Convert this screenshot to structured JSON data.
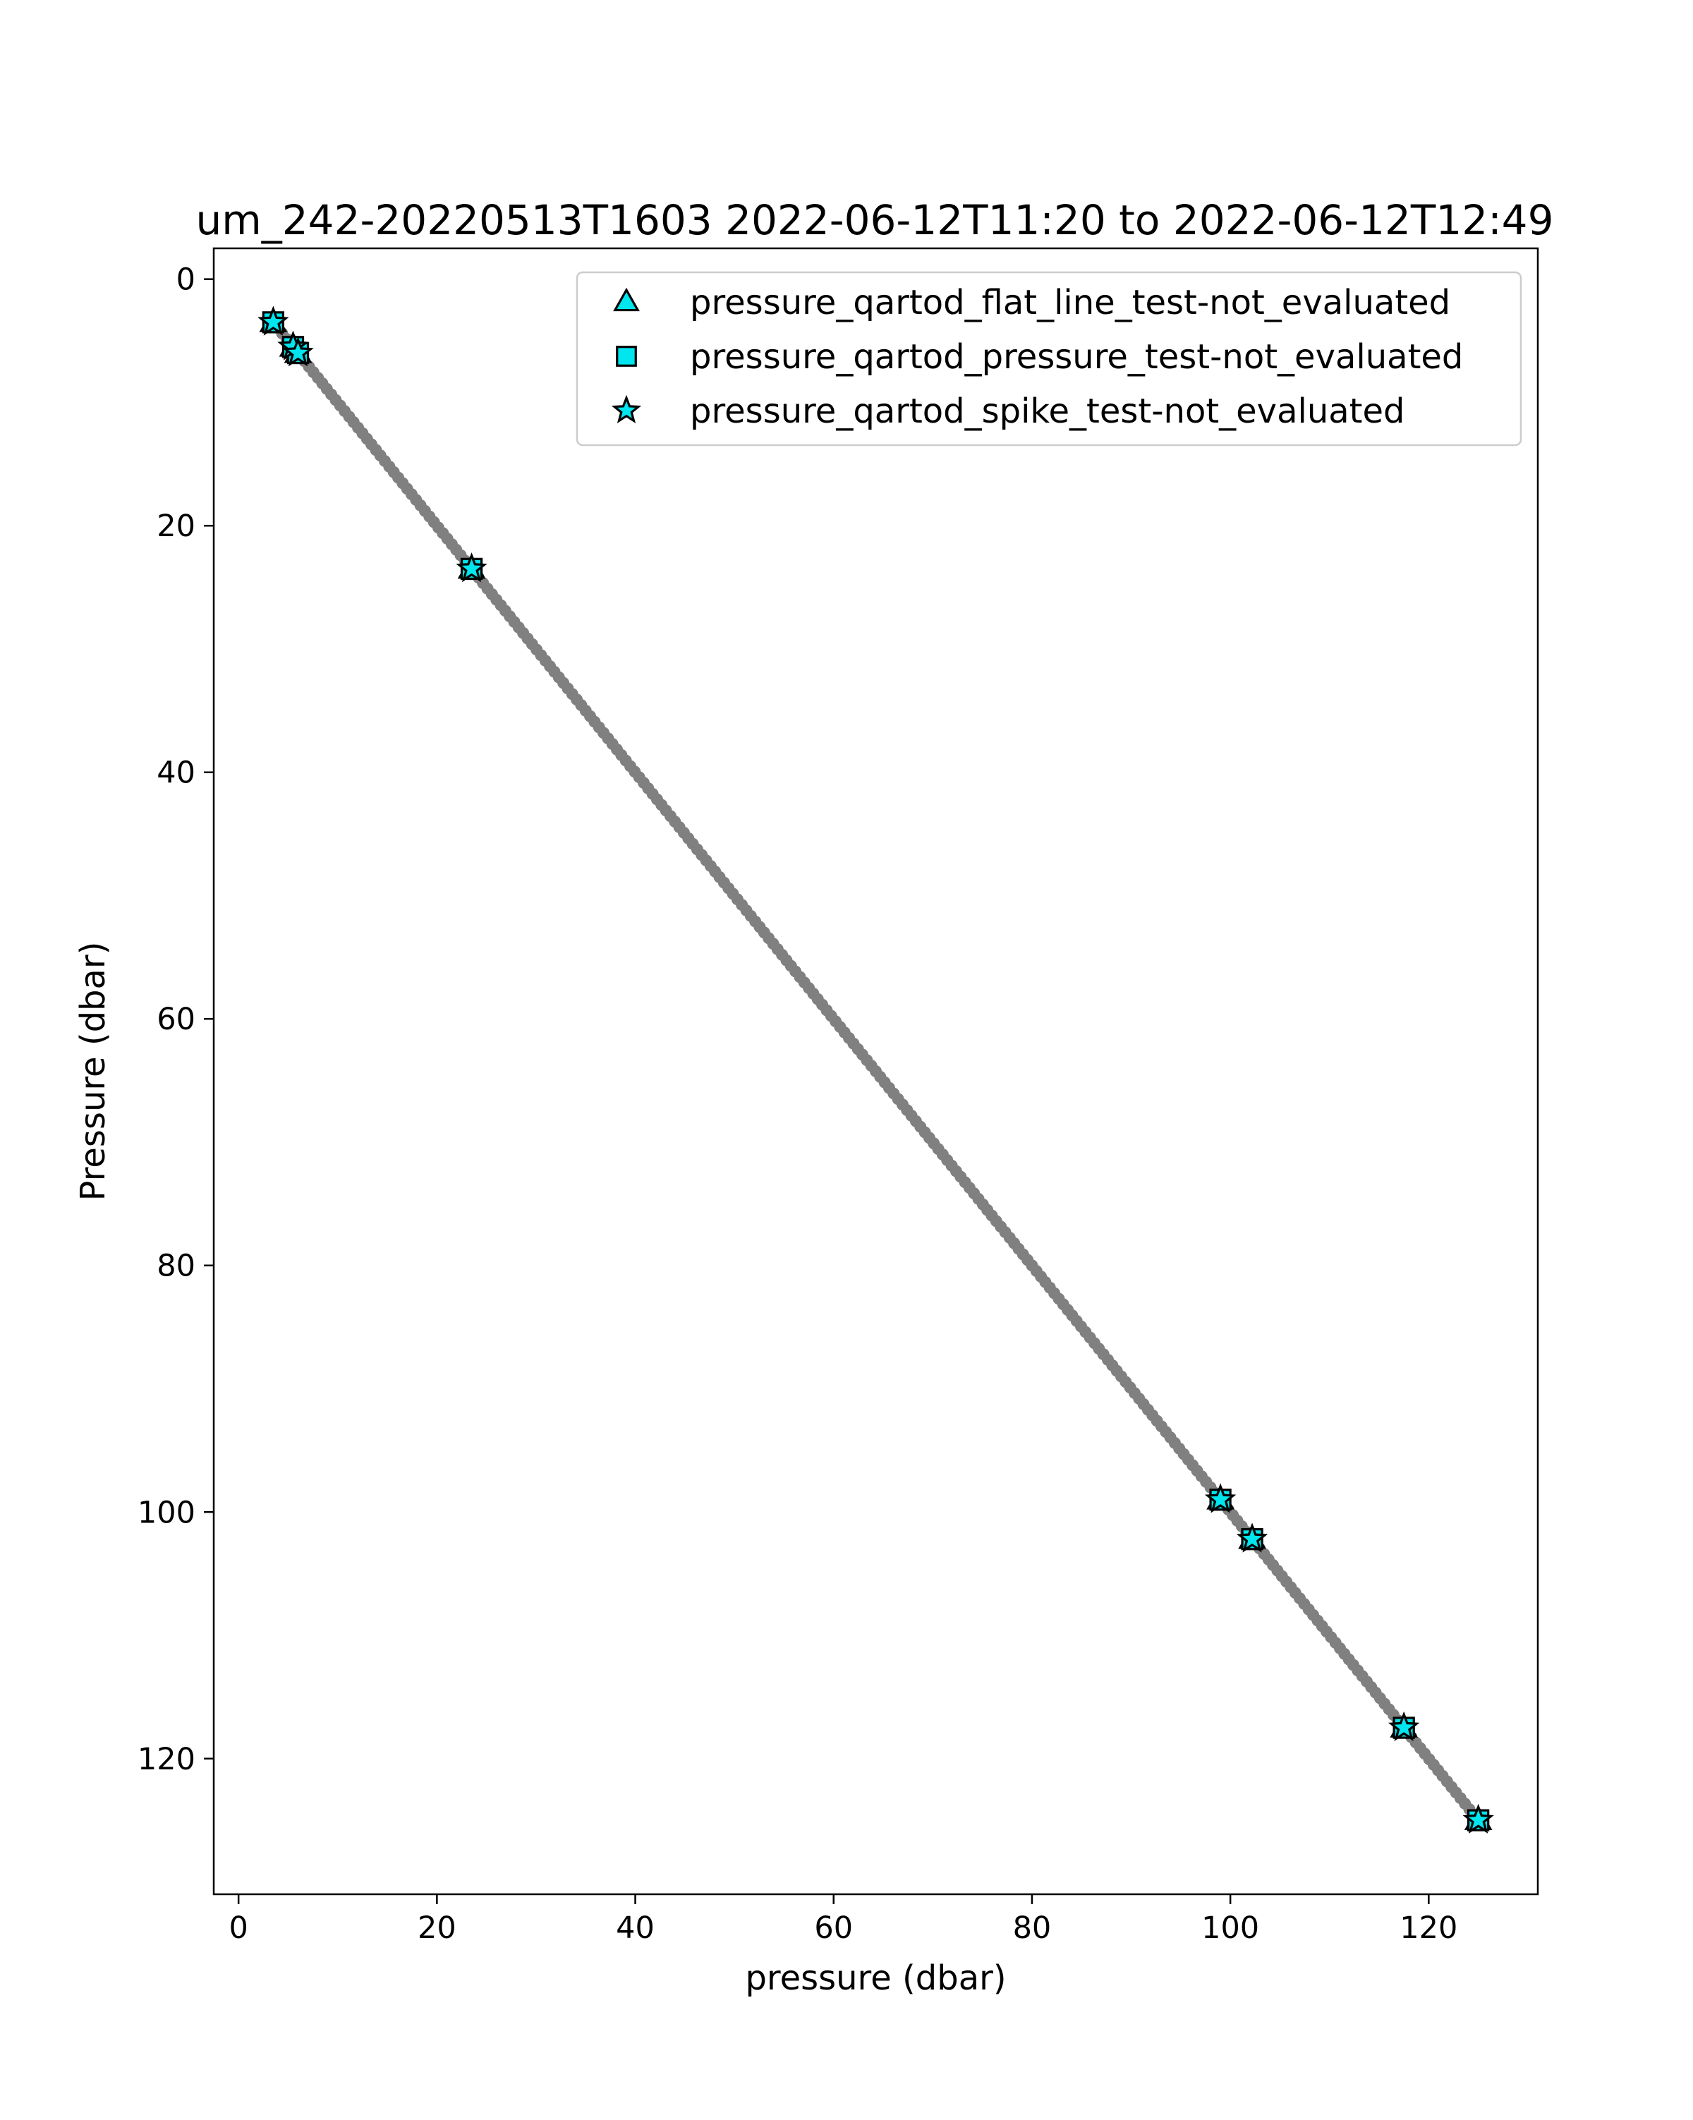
{
  "chart_data": {
    "type": "scatter",
    "title": "um_242-20220513T1603 2022-06-12T11:20 to 2022-06-12T12:49",
    "xlabel": "pressure (dbar)",
    "ylabel": "Pressure (dbar)",
    "xlim": [
      -2.5,
      131
    ],
    "ylim": [
      131,
      -2.5
    ],
    "y_inverted": true,
    "grid": false,
    "x_ticks": [
      0,
      20,
      40,
      60,
      80,
      100,
      120
    ],
    "y_ticks": [
      0,
      20,
      40,
      60,
      80,
      100,
      120
    ],
    "legend_position": "top-right",
    "line": {
      "color": "#808080",
      "x": [
        3.5,
        125
      ],
      "y": [
        3.5,
        125
      ]
    },
    "data_points": {
      "color": "#808080",
      "range": [
        3.5,
        125
      ]
    },
    "series": [
      {
        "name": "pressure_qartod_flat_line_test-not_evaluated",
        "marker": "triangle",
        "color": "#00e5ee",
        "x": [
          3.5,
          5.5,
          6.0,
          23.5,
          99.0,
          102.2,
          117.5,
          125.0
        ],
        "y": [
          3.5,
          5.5,
          6.0,
          23.5,
          99.0,
          102.2,
          117.5,
          125.0
        ]
      },
      {
        "name": "pressure_qartod_pressure_test-not_evaluated",
        "marker": "square",
        "color": "#00e5ee",
        "x": [
          3.5,
          5.5,
          6.0,
          23.5,
          99.0,
          102.2,
          117.5,
          125.0
        ],
        "y": [
          3.5,
          5.5,
          6.0,
          23.5,
          99.0,
          102.2,
          117.5,
          125.0
        ]
      },
      {
        "name": "pressure_qartod_spike_test-not_evaluated",
        "marker": "star",
        "color": "#00e5ee",
        "x": [
          3.5,
          5.5,
          6.0,
          23.5,
          99.0,
          102.2,
          117.5,
          125.0
        ],
        "y": [
          3.5,
          5.5,
          6.0,
          23.5,
          99.0,
          102.2,
          117.5,
          125.0
        ]
      }
    ]
  }
}
